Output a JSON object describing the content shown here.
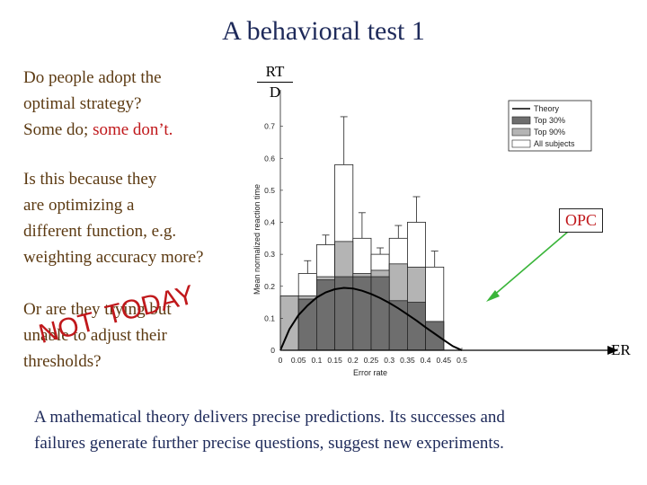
{
  "slide": {
    "title": "A behavioral test 1",
    "p1_line1": "Do people adopt the",
    "p1_line2": "optimal strategy?",
    "p1_line3a": "Some do; ",
    "p1_line3b": "some don’t.",
    "p2_line1": "Is this because they",
    "p2_line2": "are optimizing a",
    "p2_line3": "different function, e.g.",
    "p2_line4": "weighting accuracy more?",
    "p3_line1": "Or are they trying but",
    "p3_line2": "unable to adjust their",
    "p3_line3": "thresholds?",
    "stamp_today": "TODAY",
    "stamp_not": "NOT",
    "frac_num": "RT",
    "frac_den": "D",
    "opc_label": "OPC",
    "er_label": "ER",
    "bottom_line1": "A mathematical theory delivers precise predictions. Its successes and",
    "bottom_line2": "failures generate further precise questions, suggest new experiments."
  },
  "colors": {
    "title": "#1e2a5a",
    "body_text": "#5c3a12",
    "highlight_red": "#c0181b",
    "arrow_green": "#3ab53a",
    "top30": "#6e6e6e",
    "top90": "#b4b4b4",
    "all": "#ffffff"
  },
  "chart_data": {
    "type": "bar",
    "ylabel": "Mean normalized reaction time",
    "xlabel": "Error rate",
    "xlim": [
      0,
      0.5
    ],
    "ylim": [
      0,
      0.8
    ],
    "xticks": [
      "0",
      "0.05",
      "0.1",
      "0.15",
      "0.2",
      "0.25",
      "0.3",
      "0.35",
      "0.4",
      "0.45",
      "0.5"
    ],
    "yticks": [
      "0",
      "0.1",
      "0.2",
      "0.3",
      "0.4",
      "0.5",
      "0.6",
      "0.7"
    ],
    "bin_centers": [
      0.025,
      0.075,
      0.125,
      0.175,
      0.225,
      0.275,
      0.325,
      0.375,
      0.425,
      0.475
    ],
    "series": [
      {
        "name": "Top 30%",
        "values": [
          0.0,
          0.16,
          0.22,
          0.23,
          0.23,
          0.23,
          0.155,
          0.15,
          0.09,
          0.0
        ]
      },
      {
        "name": "Top 90%",
        "values": [
          0.17,
          0.17,
          0.23,
          0.34,
          0.24,
          0.25,
          0.27,
          0.26,
          0.09,
          0.0
        ]
      },
      {
        "name": "All subjects",
        "values": [
          0.17,
          0.24,
          0.33,
          0.58,
          0.35,
          0.3,
          0.35,
          0.4,
          0.26,
          0.0
        ]
      }
    ],
    "errors_upper": [
      0.0,
      0.28,
      0.36,
      0.73,
      0.43,
      0.32,
      0.39,
      0.48,
      0.31,
      0.0
    ],
    "theory": {
      "name": "Theory",
      "x": [
        0.0,
        0.025,
        0.05,
        0.075,
        0.1,
        0.125,
        0.15,
        0.175,
        0.2,
        0.225,
        0.25,
        0.275,
        0.3,
        0.325,
        0.35,
        0.375,
        0.4,
        0.425,
        0.45,
        0.475,
        0.5
      ],
      "y": [
        0.0,
        0.066,
        0.11,
        0.14,
        0.165,
        0.181,
        0.191,
        0.195,
        0.193,
        0.186,
        0.176,
        0.163,
        0.148,
        0.131,
        0.112,
        0.093,
        0.072,
        0.052,
        0.032,
        0.013,
        0.0
      ]
    },
    "legend": [
      "Theory",
      "Top 30%",
      "Top 90%",
      "All subjects"
    ],
    "legend_position": "top-right"
  }
}
